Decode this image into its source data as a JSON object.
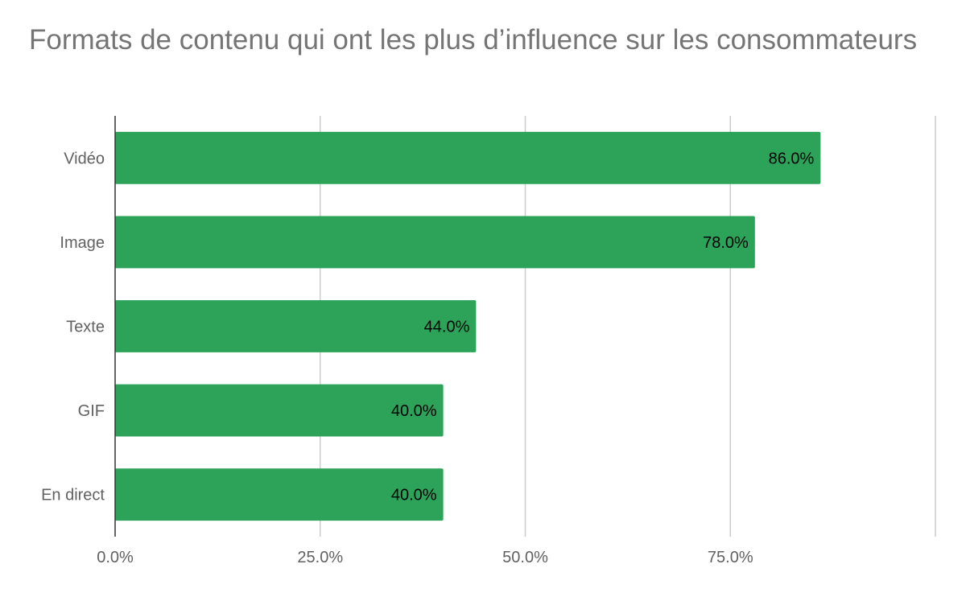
{
  "chart_data": {
    "type": "bar",
    "orientation": "horizontal",
    "title": "Formats de contenu qui ont les plus d’influence sur les consommateurs",
    "categories": [
      "Vidéo",
      "Image",
      "Texte",
      "GIF",
      "En direct"
    ],
    "values": [
      86.0,
      78.0,
      44.0,
      40.0,
      40.0
    ],
    "value_labels": [
      "86.0%",
      "78.0%",
      "44.0%",
      "40.0%",
      "40.0%"
    ],
    "xticks": [
      0,
      25,
      50,
      75,
      100
    ],
    "xtick_labels": [
      "0.0%",
      "25.0%",
      "50.0%",
      "75.0%",
      ""
    ],
    "xlim": [
      0,
      100
    ],
    "xlabel": "",
    "ylabel": "",
    "grid": true,
    "legend": "none",
    "bar_color": "#2ca358"
  }
}
